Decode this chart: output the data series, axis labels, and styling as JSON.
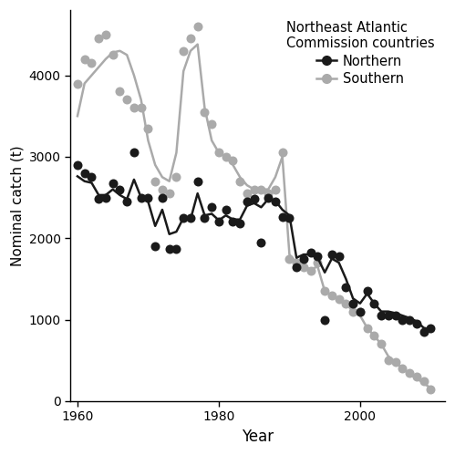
{
  "northern_scatter_x": [
    1960,
    1961,
    1962,
    1963,
    1964,
    1965,
    1966,
    1967,
    1968,
    1969,
    1970,
    1971,
    1972,
    1973,
    1974,
    1975,
    1976,
    1977,
    1978,
    1979,
    1980,
    1981,
    1982,
    1983,
    1984,
    1985,
    1986,
    1987,
    1988,
    1989,
    1990,
    1991,
    1992,
    1993,
    1994,
    1995,
    1996,
    1997,
    1998,
    1999,
    2000,
    2001,
    2002,
    2003,
    2004,
    2005,
    2006,
    2007,
    2008,
    2009,
    2010
  ],
  "northern_scatter_y": [
    2900,
    2800,
    2750,
    2480,
    2500,
    2680,
    2600,
    2450,
    3050,
    2500,
    2500,
    1900,
    2500,
    1870,
    1870,
    2250,
    2250,
    2700,
    2250,
    2380,
    2200,
    2350,
    2200,
    2180,
    2450,
    2480,
    1950,
    2500,
    2450,
    2260,
    2250,
    1650,
    1750,
    1820,
    1780,
    1000,
    1800,
    1780,
    1400,
    1200,
    1100,
    1350,
    1200,
    1050,
    1050,
    1050,
    1000,
    1000,
    950,
    850,
    900
  ],
  "northern_line_x": [
    1960,
    1961,
    1962,
    1963,
    1964,
    1965,
    1966,
    1967,
    1968,
    1969,
    1970,
    1971,
    1972,
    1973,
    1974,
    1975,
    1976,
    1977,
    1978,
    1979,
    1980,
    1981,
    1982,
    1983,
    1984,
    1985,
    1986,
    1987,
    1988,
    1989,
    1990,
    1991,
    1992,
    1993,
    1994,
    1995,
    1996,
    1997,
    1998,
    1999,
    2000,
    2001,
    2002,
    2003,
    2004,
    2005,
    2006,
    2007,
    2008,
    2009,
    2010
  ],
  "northern_line_y": [
    2760,
    2700,
    2680,
    2530,
    2530,
    2600,
    2530,
    2480,
    2720,
    2500,
    2450,
    2150,
    2350,
    2050,
    2080,
    2250,
    2230,
    2550,
    2280,
    2300,
    2220,
    2280,
    2230,
    2230,
    2400,
    2430,
    2380,
    2480,
    2460,
    2350,
    2280,
    1760,
    1800,
    1800,
    1760,
    1580,
    1750,
    1700,
    1500,
    1260,
    1200,
    1320,
    1200,
    1100,
    1100,
    1080,
    1050,
    1020,
    980,
    900,
    880
  ],
  "southern_scatter_x": [
    1960,
    1961,
    1962,
    1963,
    1964,
    1965,
    1966,
    1967,
    1968,
    1969,
    1970,
    1971,
    1972,
    1973,
    1974,
    1975,
    1976,
    1977,
    1978,
    1979,
    1980,
    1981,
    1982,
    1983,
    1984,
    1985,
    1986,
    1987,
    1988,
    1989,
    1990,
    1991,
    1992,
    1993,
    1994,
    1995,
    1996,
    1997,
    1998,
    1999,
    2000,
    2001,
    2002,
    2003,
    2004,
    2005,
    2006,
    2007,
    2008,
    2009,
    2010
  ],
  "southern_scatter_y": [
    3900,
    4200,
    4150,
    4450,
    4500,
    4250,
    3800,
    3700,
    3600,
    3600,
    3350,
    2700,
    2600,
    2550,
    2750,
    4300,
    4450,
    4600,
    3550,
    3400,
    3050,
    3000,
    2950,
    2700,
    2550,
    2600,
    2600,
    2550,
    2600,
    3050,
    1750,
    1700,
    1650,
    1600,
    1700,
    1350,
    1300,
    1250,
    1200,
    1100,
    1100,
    900,
    800,
    700,
    500,
    480,
    400,
    350,
    300,
    250,
    150
  ],
  "southern_line_x": [
    1960,
    1961,
    1962,
    1963,
    1964,
    1965,
    1966,
    1967,
    1968,
    1969,
    1970,
    1971,
    1972,
    1973,
    1974,
    1975,
    1976,
    1977,
    1978,
    1979,
    1980,
    1981,
    1982,
    1983,
    1984,
    1985,
    1986,
    1987,
    1988,
    1989,
    1990,
    1991,
    1992,
    1993,
    1994,
    1995,
    1996,
    1997,
    1998,
    1999,
    2000,
    2001,
    2002,
    2003,
    2004,
    2005,
    2006,
    2007,
    2008,
    2009,
    2010
  ],
  "southern_line_y": [
    3500,
    3900,
    4000,
    4100,
    4200,
    4280,
    4300,
    4250,
    4000,
    3700,
    3200,
    2900,
    2750,
    2700,
    3050,
    4050,
    4300,
    4380,
    3600,
    3200,
    3050,
    3000,
    2900,
    2750,
    2650,
    2600,
    2600,
    2600,
    2750,
    3000,
    1800,
    1700,
    1650,
    1620,
    1650,
    1350,
    1300,
    1250,
    1200,
    1100,
    1050,
    900,
    800,
    700,
    550,
    480,
    400,
    330,
    280,
    220,
    160
  ],
  "northern_color": "#1a1a1a",
  "southern_color": "#aaaaaa",
  "legend_title": "Northeast Atlantic\nCommission countries",
  "xlabel": "Year",
  "ylabel": "Nominal catch (t)",
  "xlim": [
    1959,
    2012
  ],
  "ylim": [
    0,
    4800
  ],
  "yticks": [
    0,
    1000,
    2000,
    3000,
    4000
  ],
  "xticks": [
    1960,
    1980,
    2000
  ]
}
